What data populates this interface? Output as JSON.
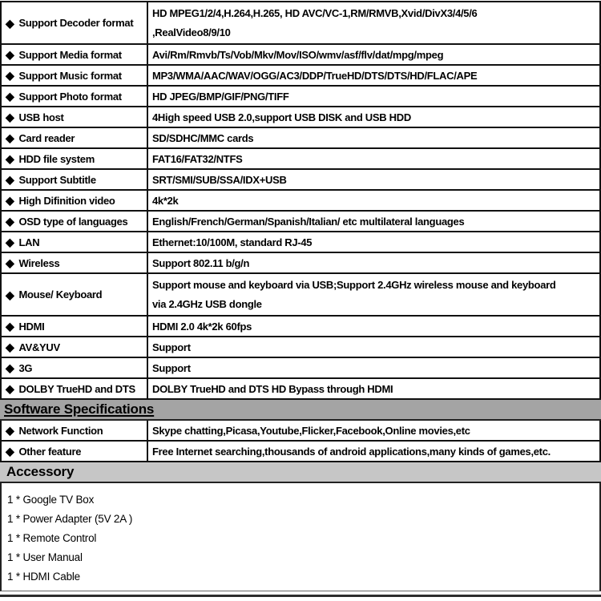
{
  "icons": {
    "bullet": "◆"
  },
  "colors": {
    "border": "#111111",
    "software_header_bg": "#a4a4a4",
    "accessory_header_bg": "#c6c6c6",
    "text": "#000000"
  },
  "hardware": {
    "rows": [
      {
        "label": "Support Decoder format",
        "value": "HD MPEG1/2/4,H.264,H.265, HD AVC/VC-1,RM/RMVB,Xvid/DivX3/4/5/6\n,RealVideo8/9/10"
      },
      {
        "label": "Support Media format",
        "value": "Avi/Rm/Rmvb/Ts/Vob/Mkv/Mov/ISO/wmv/asf/flv/dat/mpg/mpeg"
      },
      {
        "label": "Support Music format",
        "value": "MP3/WMA/AAC/WAV/OGG/AC3/DDP/TrueHD/DTS/DTS/HD/FLAC/APE"
      },
      {
        "label": "Support Photo format",
        "value": "HD JPEG/BMP/GIF/PNG/TIFF"
      },
      {
        "label": "USB host",
        "value": "4High speed USB 2.0,support USB DISK and USB HDD"
      },
      {
        "label": "Card reader",
        "value": "SD/SDHC/MMC cards"
      },
      {
        "label": "HDD file system",
        "value": "FAT16/FAT32/NTFS"
      },
      {
        "label": "Support Subtitle",
        "value": "SRT/SMI/SUB/SSA/IDX+USB"
      },
      {
        "label": "High Difinition video",
        "value": "4k*2k"
      },
      {
        "label": "OSD type of languages",
        "value": "English/French/German/Spanish/Italian/ etc multilateral languages"
      },
      {
        "label": "LAN",
        "value": "Ethernet:10/100M, standard RJ-45"
      },
      {
        "label": "Wireless",
        "value": "Support 802.11 b/g/n"
      },
      {
        "label": "Mouse/ Keyboard",
        "value": "Support mouse and keyboard via USB;Support 2.4GHz wireless mouse and keyboard\nvia 2.4GHz USB dongle"
      },
      {
        "label": "HDMI",
        "value": "HDMI 2.0 4k*2k 60fps"
      },
      {
        "label": "AV&YUV",
        "value": "Support"
      },
      {
        "label": "3G",
        "value": "Support"
      },
      {
        "label": "DOLBY TrueHD and DTS",
        "value": "DOLBY TrueHD and DTS HD Bypass through HDMI"
      }
    ]
  },
  "software": {
    "header": "Software Specifications",
    "rows": [
      {
        "label": "Network Function",
        "value": "Skype chatting,Picasa,Youtube,Flicker,Facebook,Online movies,etc"
      },
      {
        "label": "Other feature",
        "value": "Free Internet searching,thousands of android applications,many kinds of games,etc."
      }
    ]
  },
  "accessory": {
    "header": "Accessory",
    "items": [
      "1 * Google TV Box",
      "1 * Power Adapter (5V 2A )",
      "1 * Remote Control",
      "1 * User Manual",
      "1 * HDMI Cable"
    ]
  }
}
